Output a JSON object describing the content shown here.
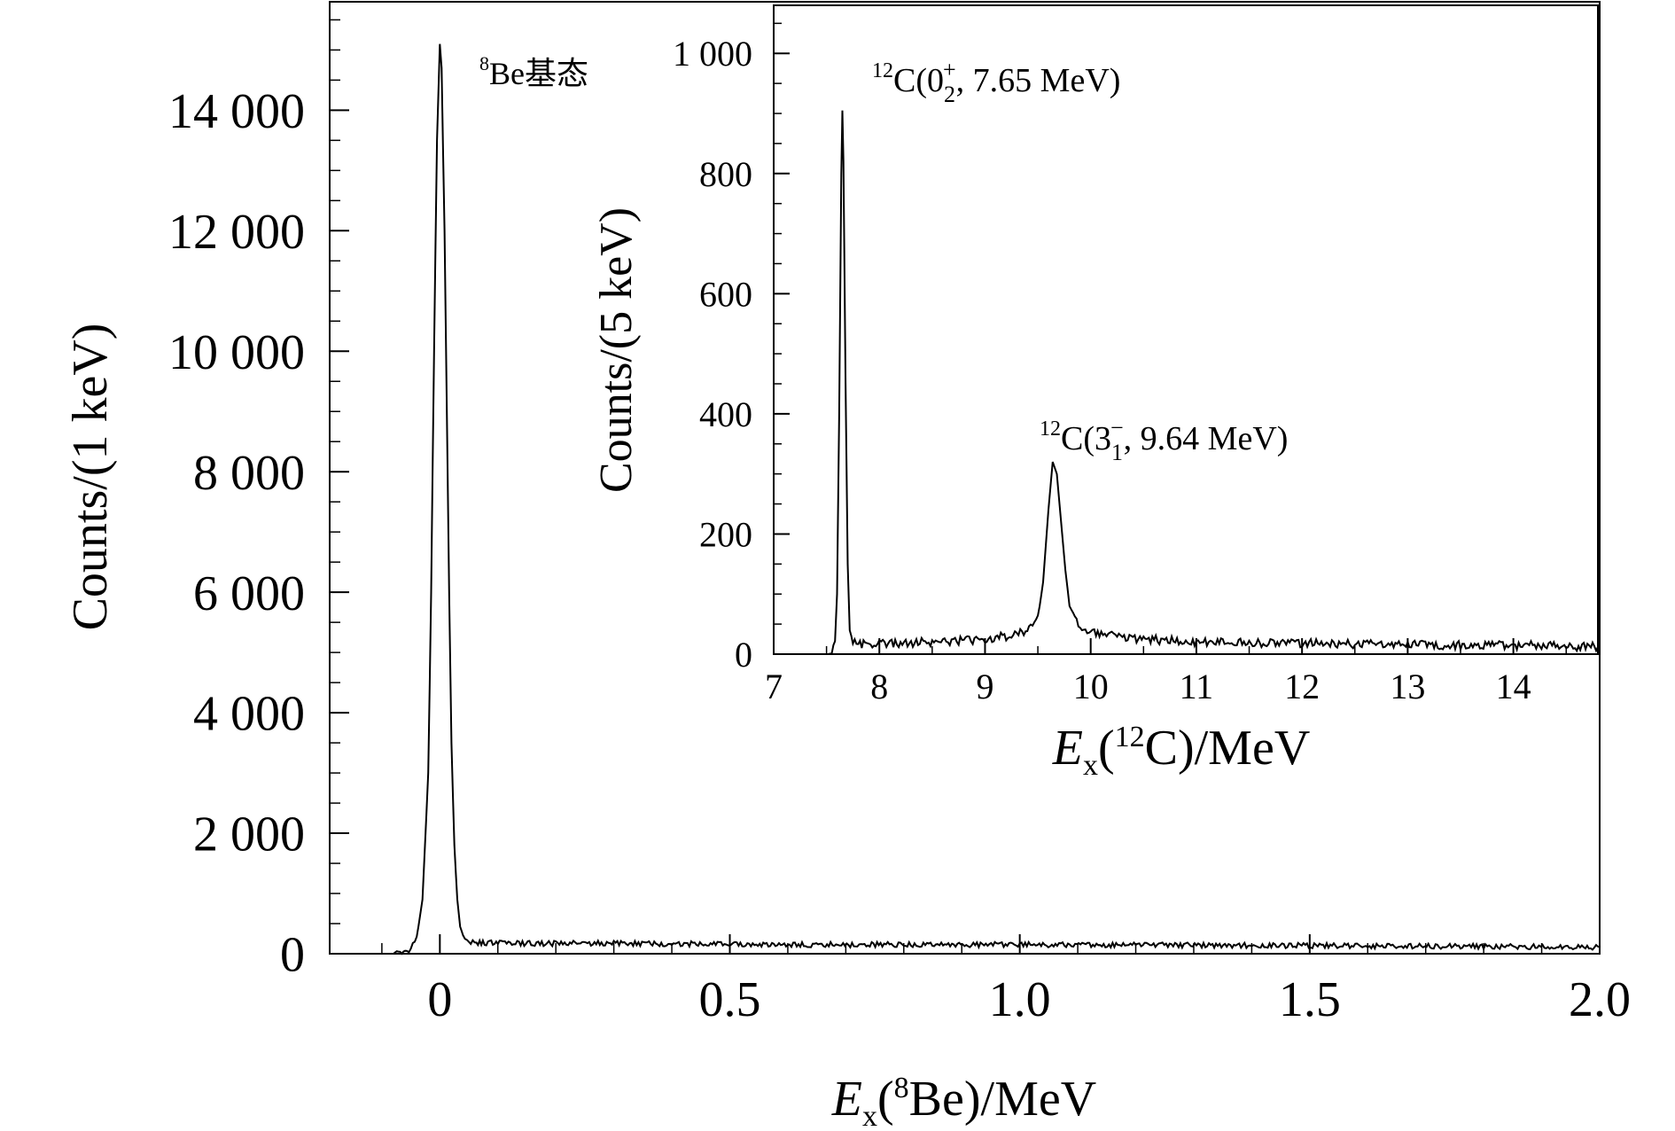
{
  "chart_data": [
    {
      "type": "line",
      "xlabel": {
        "symbol": "E",
        "sub": "x",
        "open": "(",
        "sup": "8",
        "element": "Be",
        "close": ")/MeV"
      },
      "ylabel": "Counts/(1 keV)",
      "xlim": [
        -0.19,
        2.0
      ],
      "ylim": [
        0,
        15800
      ],
      "x_ticks": [
        0,
        0.5,
        1.0,
        1.5,
        2.0
      ],
      "x_tick_labels": [
        "0",
        "0.5",
        "1.0",
        "1.5",
        "2.0"
      ],
      "y_ticks": [
        0,
        2000,
        4000,
        6000,
        8000,
        10000,
        12000,
        14000
      ],
      "y_tick_labels": [
        "0",
        "2 000",
        "4 000",
        "6 000",
        "8 000",
        "10 000",
        "12 000",
        "14 000"
      ],
      "annotations": [
        {
          "sup": "8",
          "text": "Be基态",
          "x": 0.0,
          "y": 15200
        }
      ],
      "series": [
        {
          "x": [
            -0.12,
            -0.08,
            -0.06,
            -0.05,
            -0.04,
            -0.03,
            -0.02,
            -0.015,
            -0.01,
            -0.005,
            0.0,
            0.003,
            0.008,
            0.012,
            0.016,
            0.02,
            0.025,
            0.03,
            0.035,
            0.04,
            0.05,
            0.06,
            0.08,
            0.1,
            0.2,
            0.3,
            0.4,
            0.5,
            0.6,
            0.8,
            1.0,
            1.2,
            1.4,
            1.6,
            1.8,
            2.0
          ],
          "values": [
            0,
            0,
            30,
            80,
            250,
            900,
            3000,
            6000,
            10000,
            13500,
            15100,
            14700,
            12000,
            9000,
            6000,
            3500,
            1800,
            900,
            450,
            280,
            200,
            190,
            180,
            175,
            170,
            175,
            165,
            160,
            150,
            150,
            150,
            145,
            140,
            130,
            120,
            110
          ]
        }
      ]
    },
    {
      "type": "line",
      "xlabel": {
        "symbol": "E",
        "sub": "x",
        "open": "(",
        "sup": "12",
        "element": "C",
        "close": ")/MeV"
      },
      "ylabel": "Counts/(5 keV)",
      "xlim": [
        7,
        14.8
      ],
      "ylim": [
        0,
        1080
      ],
      "x_ticks": [
        7,
        8,
        9,
        10,
        11,
        12,
        13,
        14
      ],
      "x_tick_labels": [
        "7",
        "8",
        "9",
        "10",
        "11",
        "12",
        "13",
        "14"
      ],
      "y_ticks": [
        0,
        200,
        400,
        600,
        800,
        1000
      ],
      "y_tick_labels": [
        "0",
        "200",
        "400",
        "600",
        "800",
        "1 000"
      ],
      "annotations": [
        {
          "sup": "12",
          "text": "C(0",
          "sub": "2",
          "sup2": "+",
          "tail": ", 7.65 MeV)",
          "x": 7.65,
          "y": 905
        },
        {
          "sup": "12",
          "text": "C(3",
          "sub": "1",
          "sup2": "−",
          "tail": ", 9.64 MeV)",
          "x": 9.64,
          "y": 320
        }
      ],
      "series": [
        {
          "x": [
            7.0,
            7.5,
            7.55,
            7.58,
            7.6,
            7.62,
            7.64,
            7.65,
            7.66,
            7.68,
            7.7,
            7.72,
            7.75,
            7.8,
            8.0,
            8.5,
            9.0,
            9.2,
            9.4,
            9.5,
            9.55,
            9.6,
            9.64,
            9.68,
            9.72,
            9.76,
            9.8,
            9.9,
            10.0,
            10.2,
            10.5,
            11.0,
            12.0,
            13.0,
            14.0,
            14.8
          ],
          "values": [
            0,
            0,
            3,
            15,
            100,
            400,
            800,
            905,
            820,
            450,
            150,
            40,
            20,
            15,
            18,
            20,
            25,
            30,
            40,
            60,
            120,
            240,
            320,
            300,
            220,
            140,
            80,
            45,
            35,
            30,
            25,
            20,
            18,
            15,
            15,
            12
          ]
        }
      ]
    }
  ]
}
